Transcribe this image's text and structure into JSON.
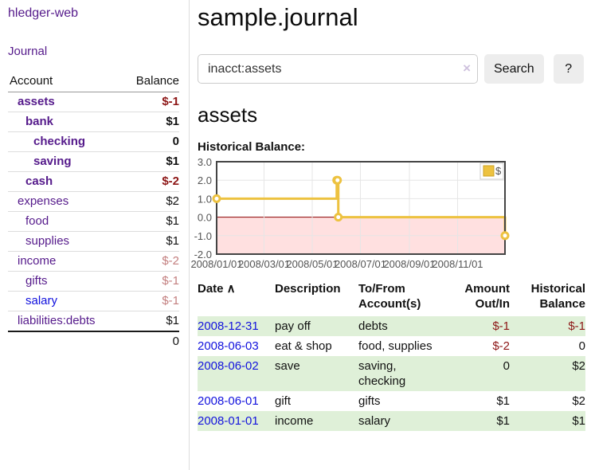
{
  "app": {
    "brand": "hledger-web"
  },
  "sidebar": {
    "journal_label": "Journal",
    "accounts": {
      "headers": [
        "Account",
        "Balance"
      ],
      "rows": [
        {
          "name": "assets",
          "indent": 1,
          "bold": true,
          "link": "purple",
          "balance": "$-1",
          "balance_class": "neg"
        },
        {
          "name": "bank",
          "indent": 2,
          "bold": true,
          "link": "purple",
          "balance": "$1",
          "balance_class": ""
        },
        {
          "name": "checking",
          "indent": 3,
          "bold": true,
          "link": "purple",
          "balance": "0",
          "balance_class": ""
        },
        {
          "name": "saving",
          "indent": 3,
          "bold": true,
          "link": "purple",
          "balance": "$1",
          "balance_class": ""
        },
        {
          "name": "cash",
          "indent": 2,
          "bold": true,
          "link": "purple",
          "balance": "$-2",
          "balance_class": "neg"
        },
        {
          "name": "expenses",
          "indent": 1,
          "bold": false,
          "link": "purple",
          "balance": "$2",
          "balance_class": ""
        },
        {
          "name": "food",
          "indent": 2,
          "bold": false,
          "link": "purple",
          "balance": "$1",
          "balance_class": ""
        },
        {
          "name": "supplies",
          "indent": 2,
          "bold": false,
          "link": "purple",
          "balance": "$1",
          "balance_class": ""
        },
        {
          "name": "income",
          "indent": 1,
          "bold": false,
          "link": "purple",
          "balance": "$-2",
          "balance_class": "neg-dim"
        },
        {
          "name": "gifts",
          "indent": 2,
          "bold": false,
          "link": "purple",
          "balance": "$-1",
          "balance_class": "neg-dim"
        },
        {
          "name": "salary",
          "indent": 2,
          "bold": false,
          "link": "blue",
          "balance": "$-1",
          "balance_class": "neg-dim"
        },
        {
          "name": "liabilities:debts",
          "indent": 1,
          "bold": false,
          "link": "purple",
          "balance": "$1",
          "balance_class": ""
        }
      ],
      "total": "0"
    }
  },
  "main": {
    "title": "sample.journal",
    "search": {
      "value": "inacct:assets",
      "clear_icon": "×",
      "button_label": "Search",
      "help_label": "?"
    },
    "account_heading": "assets",
    "chart_label": "Historical Balance:"
  },
  "chart_data": {
    "type": "line",
    "step": true,
    "title": "Historical Balance",
    "x_domain": [
      "2008-01-01",
      "2008-12-31"
    ],
    "ylim": [
      -2,
      3
    ],
    "y_ticks": [
      {
        "v": 3,
        "label": "3.0"
      },
      {
        "v": 2,
        "label": "2.0"
      },
      {
        "v": 1,
        "label": "1.0"
      },
      {
        "v": 0,
        "label": "0.0"
      },
      {
        "v": -1,
        "label": "-1.0"
      },
      {
        "v": -2,
        "label": "-2.0"
      }
    ],
    "x_ticks": [
      {
        "date": "2008-01-01",
        "label": "2008/01/01"
      },
      {
        "date": "2008-03-01",
        "label": "2008/03/01"
      },
      {
        "date": "2008-05-01",
        "label": "2008/05/01"
      },
      {
        "date": "2008-07-01",
        "label": "2008/07/01"
      },
      {
        "date": "2008-09-01",
        "label": "2008/09/01"
      },
      {
        "date": "2008-11-01",
        "label": "2008/11/01"
      }
    ],
    "series": [
      {
        "name": "$",
        "color": "#EDC240",
        "marker_fill": "#ffffff",
        "points": [
          {
            "date": "2008-01-01",
            "value": 1
          },
          {
            "date": "2008-06-01",
            "value": 2
          },
          {
            "date": "2008-06-02",
            "value": 2
          },
          {
            "date": "2008-06-03",
            "value": 0
          },
          {
            "date": "2008-12-31",
            "value": -1
          }
        ]
      }
    ],
    "legend": {
      "position": "top-right",
      "entries": [
        {
          "label": "$",
          "color": "#EDC240"
        }
      ]
    },
    "grid": {
      "h_color": "#e6e6e6",
      "v_color": "#e6e6e6",
      "zero_color": "#8b0000",
      "negative_fill": "rgba(255,0,0,0.12)",
      "border": "#444444",
      "legend_border": "#cccccc",
      "square_border": "#cda222"
    }
  },
  "register": {
    "headers": [
      {
        "label": "Date",
        "sort_icon": "∧",
        "align": "left"
      },
      {
        "label": "Description",
        "align": "left"
      },
      {
        "label": "To/From Account(s)",
        "align": "left"
      },
      {
        "label": "Amount Out/In",
        "align": "right"
      },
      {
        "label": "Historical Balance",
        "align": "right"
      }
    ],
    "rows": [
      {
        "date": "2008-12-31",
        "description": "pay off",
        "accounts": "debts",
        "amount": "$-1",
        "amount_neg": true,
        "balance": "$-1",
        "balance_neg": true
      },
      {
        "date": "2008-06-03",
        "description": "eat & shop",
        "accounts": "food, supplies",
        "amount": "$-2",
        "amount_neg": true,
        "balance": "0",
        "balance_neg": false
      },
      {
        "date": "2008-06-02",
        "description": "save",
        "accounts": "saving, checking",
        "amount": "0",
        "amount_neg": false,
        "balance": "$2",
        "balance_neg": false
      },
      {
        "date": "2008-06-01",
        "description": "gift",
        "accounts": "gifts",
        "amount": "$1",
        "amount_neg": false,
        "balance": "$2",
        "balance_neg": false
      },
      {
        "date": "2008-01-01",
        "description": "income",
        "accounts": "salary",
        "amount": "$1",
        "amount_neg": false,
        "balance": "$1",
        "balance_neg": false
      }
    ]
  }
}
